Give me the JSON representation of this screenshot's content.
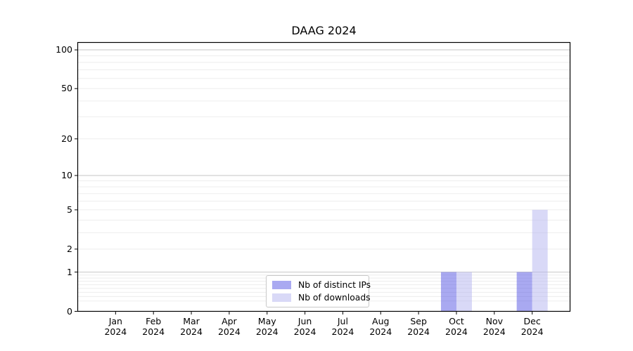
{
  "figure": {
    "background_color": "#ffffff"
  },
  "chart_data": {
    "type": "bar",
    "title": "DAAG 2024",
    "xlabel": "",
    "ylabel": "",
    "yscale": "log1p",
    "ylim": [
      0,
      114
    ],
    "grid": "horizontal (light minor lines, darker lines at 1, 10, 100)",
    "legend_position": "bottom-center-inside",
    "categories": [
      {
        "month": "Jan",
        "year": "2024"
      },
      {
        "month": "Feb",
        "year": "2024"
      },
      {
        "month": "Mar",
        "year": "2024"
      },
      {
        "month": "Apr",
        "year": "2024"
      },
      {
        "month": "May",
        "year": "2024"
      },
      {
        "month": "Jun",
        "year": "2024"
      },
      {
        "month": "Jul",
        "year": "2024"
      },
      {
        "month": "Aug",
        "year": "2024"
      },
      {
        "month": "Sep",
        "year": "2024"
      },
      {
        "month": "Oct",
        "year": "2024"
      },
      {
        "month": "Nov",
        "year": "2024"
      },
      {
        "month": "Dec",
        "year": "2024"
      }
    ],
    "yticks": [
      {
        "value": 100,
        "label": "100"
      },
      {
        "value": 50,
        "label": "50"
      },
      {
        "value": 20,
        "label": "20"
      },
      {
        "value": 10,
        "label": "10"
      },
      {
        "value": 5,
        "label": "5"
      },
      {
        "value": 2,
        "label": "2"
      },
      {
        "value": 1,
        "label": "1"
      },
      {
        "value": 0,
        "label": "0"
      }
    ],
    "series": [
      {
        "name": "Nb of distinct IPs",
        "color": "#a9a9f1",
        "fill": "rgba(83,83,227,0.5)",
        "values": [
          0,
          0,
          0,
          0,
          0,
          0,
          0,
          0,
          0,
          1,
          0,
          1
        ]
      },
      {
        "name": "Nb of downloads",
        "color": "#d9d9f7",
        "fill": "rgba(179,179,239,0.5)",
        "values": [
          0,
          0,
          0,
          0,
          0,
          0,
          0,
          0,
          0,
          1,
          0,
          5
        ]
      }
    ],
    "colors": {
      "major_gridline": "#c6c6c6",
      "minor_gridline": "#ededed",
      "axis_spine": "#000000"
    }
  }
}
